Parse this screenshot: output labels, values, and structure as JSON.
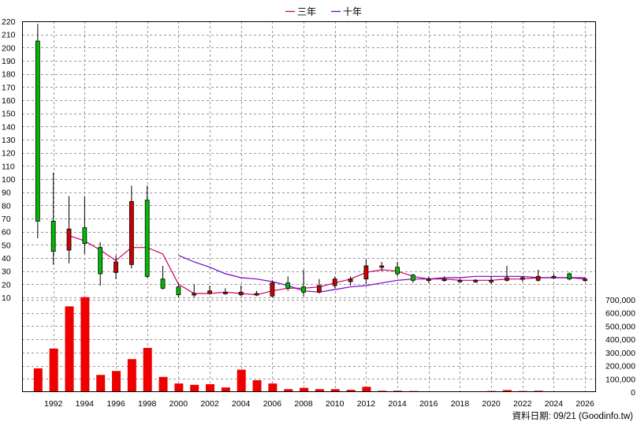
{
  "chart_data": {
    "type": "candlestick-with-volume-bars",
    "legend": [
      {
        "label": "三年",
        "color": "#cc0066"
      },
      {
        "label": "十年",
        "color": "#7700cc"
      }
    ],
    "source_note": "資料日期: 09/21   (Goodinfo.tw)",
    "x_range": [
      1990,
      2026.7
    ],
    "x_ticks": [
      1992,
      1994,
      1996,
      1998,
      2000,
      2002,
      2004,
      2006,
      2008,
      2010,
      2012,
      2014,
      2016,
      2018,
      2020,
      2022,
      2024,
      2026
    ],
    "price_axis": {
      "ylim": [
        0,
        220
      ],
      "ticks": [
        10,
        20,
        30,
        40,
        50,
        60,
        70,
        80,
        90,
        100,
        110,
        120,
        130,
        140,
        150,
        160,
        170,
        180,
        190,
        200,
        210,
        220
      ]
    },
    "volume_axis": {
      "ylim": [
        0,
        700000
      ],
      "ticks": [
        0,
        100000,
        200000,
        300000,
        400000,
        500000,
        600000,
        700000
      ],
      "tick_labels": [
        "0",
        "100,000",
        "200,000",
        "300,000",
        "400,000",
        "500,000",
        "600,000",
        "700,000"
      ]
    },
    "colors": {
      "up": "#cc0000",
      "down": "#00bb00",
      "volume": "#ee0000",
      "grid": "#999999"
    },
    "candles": [
      {
        "year": 1991,
        "open": 205,
        "close": 68,
        "high": 218,
        "low": 55
      },
      {
        "year": 1992,
        "open": 68,
        "close": 45,
        "high": 105,
        "low": 35
      },
      {
        "year": 1993,
        "open": 46,
        "close": 62,
        "high": 87,
        "low": 36
      },
      {
        "year": 1994,
        "open": 63,
        "close": 51,
        "high": 87,
        "low": 43
      },
      {
        "year": 1995,
        "open": 48,
        "close": 28,
        "high": 52,
        "low": 19
      },
      {
        "year": 1996,
        "open": 29,
        "close": 37,
        "high": 42,
        "low": 24
      },
      {
        "year": 1997,
        "open": 35,
        "close": 83,
        "high": 95,
        "low": 32
      },
      {
        "year": 1998,
        "open": 84,
        "close": 26,
        "high": 95,
        "low": 25
      },
      {
        "year": 1999,
        "open": 24,
        "close": 17,
        "high": 34,
        "low": 16
      },
      {
        "year": 2000,
        "open": 18,
        "close": 12,
        "high": 20,
        "low": 10
      },
      {
        "year": 2001,
        "open": 12,
        "close": 13,
        "high": 20,
        "low": 10
      },
      {
        "year": 2002,
        "open": 13,
        "close": 15,
        "high": 19,
        "low": 12
      },
      {
        "year": 2003,
        "open": 13,
        "close": 14,
        "high": 17,
        "low": 12
      },
      {
        "year": 2004,
        "open": 12,
        "close": 14,
        "high": 19,
        "low": 11
      },
      {
        "year": 2005,
        "open": 12,
        "close": 13,
        "high": 15,
        "low": 11
      },
      {
        "year": 2006,
        "open": 11,
        "close": 21,
        "high": 23,
        "low": 10
      },
      {
        "year": 2007,
        "open": 21,
        "close": 17,
        "high": 26,
        "low": 15
      },
      {
        "year": 2008,
        "open": 18,
        "close": 14,
        "high": 31,
        "low": 11
      },
      {
        "year": 2009,
        "open": 14,
        "close": 19,
        "high": 24,
        "low": 13
      },
      {
        "year": 2010,
        "open": 19,
        "close": 24,
        "high": 26,
        "low": 17
      },
      {
        "year": 2011,
        "open": 22,
        "close": 24,
        "high": 26,
        "low": 19
      },
      {
        "year": 2012,
        "open": 24,
        "close": 34,
        "high": 39,
        "low": 20
      },
      {
        "year": 2013,
        "open": 33,
        "close": 34,
        "high": 37,
        "low": 30
      },
      {
        "year": 2014,
        "open": 33,
        "close": 28,
        "high": 37,
        "low": 26
      },
      {
        "year": 2015,
        "open": 27,
        "close": 23,
        "high": 28,
        "low": 21
      },
      {
        "year": 2016,
        "open": 23,
        "close": 24,
        "high": 26,
        "low": 21
      },
      {
        "year": 2017,
        "open": 23,
        "close": 24,
        "high": 26,
        "low": 22
      },
      {
        "year": 2018,
        "open": 23,
        "close": 23,
        "high": 24,
        "low": 22
      },
      {
        "year": 2019,
        "open": 22,
        "close": 23,
        "high": 24,
        "low": 21
      },
      {
        "year": 2020,
        "open": 22,
        "close": 23,
        "high": 26,
        "low": 20
      },
      {
        "year": 2021,
        "open": 23,
        "close": 25,
        "high": 34,
        "low": 22
      },
      {
        "year": 2022,
        "open": 24,
        "close": 25,
        "high": 26,
        "low": 22
      },
      {
        "year": 2023,
        "open": 23,
        "close": 26,
        "high": 31,
        "low": 22
      },
      {
        "year": 2024,
        "open": 25,
        "close": 26,
        "high": 28,
        "low": 24
      },
      {
        "year": 2025,
        "open": 28,
        "close": 24,
        "high": 29,
        "low": 23
      },
      {
        "year": 2026,
        "open": 24,
        "close": 24,
        "high": 25,
        "low": 22
      }
    ],
    "volume": [
      {
        "year": 1991,
        "value": 180000
      },
      {
        "year": 1992,
        "value": 330000
      },
      {
        "year": 1993,
        "value": 650000
      },
      {
        "year": 1994,
        "value": 720000
      },
      {
        "year": 1995,
        "value": 130000
      },
      {
        "year": 1996,
        "value": 160000
      },
      {
        "year": 1997,
        "value": 250000
      },
      {
        "year": 1998,
        "value": 335000
      },
      {
        "year": 1999,
        "value": 115000
      },
      {
        "year": 2000,
        "value": 65000
      },
      {
        "year": 2001,
        "value": 55000
      },
      {
        "year": 2002,
        "value": 60000
      },
      {
        "year": 2003,
        "value": 35000
      },
      {
        "year": 2004,
        "value": 170000
      },
      {
        "year": 2005,
        "value": 90000
      },
      {
        "year": 2006,
        "value": 65000
      },
      {
        "year": 2007,
        "value": 22000
      },
      {
        "year": 2008,
        "value": 32000
      },
      {
        "year": 2009,
        "value": 22000
      },
      {
        "year": 2010,
        "value": 22000
      },
      {
        "year": 2011,
        "value": 17000
      },
      {
        "year": 2012,
        "value": 40000
      },
      {
        "year": 2013,
        "value": 10000
      },
      {
        "year": 2014,
        "value": 10000
      },
      {
        "year": 2015,
        "value": 8000
      },
      {
        "year": 2016,
        "value": 4000
      },
      {
        "year": 2017,
        "value": 4000
      },
      {
        "year": 2018,
        "value": 3000
      },
      {
        "year": 2019,
        "value": 3000
      },
      {
        "year": 2020,
        "value": 8000
      },
      {
        "year": 2021,
        "value": 15000
      },
      {
        "year": 2022,
        "value": 8000
      },
      {
        "year": 2023,
        "value": 10000
      },
      {
        "year": 2024,
        "value": 5000
      },
      {
        "year": 2025,
        "value": 4000
      },
      {
        "year": 2026,
        "value": 2000
      }
    ],
    "series": [
      {
        "name": "三年",
        "color": "#cc0066",
        "points": [
          [
            1993,
            57
          ],
          [
            1994,
            53
          ],
          [
            1995,
            46
          ],
          [
            1996,
            38
          ],
          [
            1997,
            48
          ],
          [
            1998,
            48
          ],
          [
            1999,
            43
          ],
          [
            2000,
            20
          ],
          [
            2001,
            13
          ],
          [
            2002,
            13
          ],
          [
            2003,
            14
          ],
          [
            2004,
            13
          ],
          [
            2005,
            12
          ],
          [
            2006,
            15
          ],
          [
            2007,
            17
          ],
          [
            2008,
            17
          ],
          [
            2009,
            18
          ],
          [
            2010,
            21
          ],
          [
            2011,
            24
          ],
          [
            2012,
            29
          ],
          [
            2013,
            31
          ],
          [
            2014,
            30
          ],
          [
            2015,
            26
          ],
          [
            2016,
            24
          ],
          [
            2017,
            24
          ],
          [
            2018,
            23
          ],
          [
            2019,
            23
          ],
          [
            2020,
            23
          ],
          [
            2021,
            24
          ],
          [
            2022,
            24
          ],
          [
            2023,
            25
          ],
          [
            2024,
            25
          ],
          [
            2025,
            25
          ],
          [
            2026,
            24
          ]
        ]
      },
      {
        "name": "十年",
        "color": "#7700cc",
        "points": [
          [
            2000,
            42
          ],
          [
            2001,
            37
          ],
          [
            2002,
            33
          ],
          [
            2003,
            28
          ],
          [
            2004,
            25
          ],
          [
            2005,
            24
          ],
          [
            2006,
            22
          ],
          [
            2007,
            19
          ],
          [
            2008,
            15
          ],
          [
            2009,
            14
          ],
          [
            2010,
            16
          ],
          [
            2011,
            18
          ],
          [
            2012,
            19
          ],
          [
            2013,
            21
          ],
          [
            2014,
            23
          ],
          [
            2015,
            24
          ],
          [
            2016,
            24
          ],
          [
            2017,
            25
          ],
          [
            2018,
            25
          ],
          [
            2019,
            26
          ],
          [
            2020,
            26
          ],
          [
            2021,
            26
          ],
          [
            2022,
            26
          ],
          [
            2023,
            25
          ],
          [
            2024,
            25
          ],
          [
            2025,
            25
          ],
          [
            2026,
            25
          ]
        ]
      }
    ]
  }
}
